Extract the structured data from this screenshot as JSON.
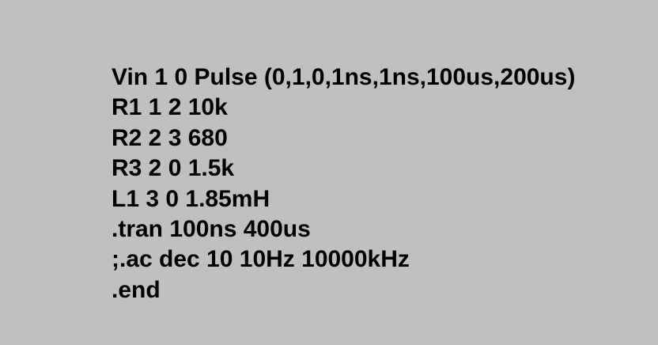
{
  "netlist": {
    "lines": [
      "Vin 1 0 Pulse (0,1,0,1ns,1ns,100us,200us)",
      "R1 1 2 10k",
      "R2 2 3 680",
      "R3 2 0 1.5k",
      "L1 3 0 1.85mH",
      ".tran 100ns 400us",
      ";.ac dec 10 10Hz 10000kHz",
      ".end"
    ]
  },
  "colors": {
    "background": "#c0c0c0",
    "text": "#000000"
  }
}
